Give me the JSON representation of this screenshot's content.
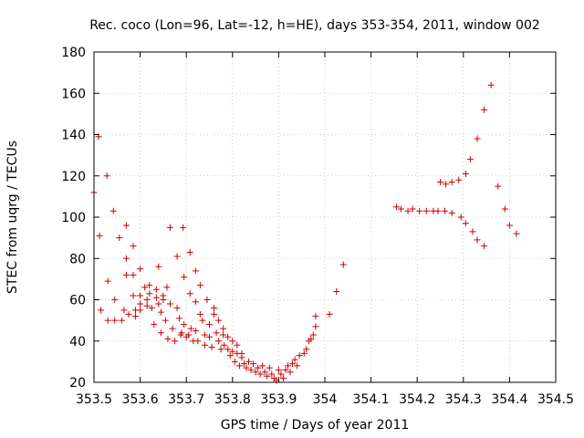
{
  "chart_data": {
    "type": "scatter",
    "title": "Rec. coco (Lon=96, Lat=-12, h=HE), days 353-354, 2011, window 002",
    "xlabel": "GPS time / Days of year 2011",
    "ylabel": "STEC from uqrg / TECUs",
    "xlim": [
      353.5,
      354.5
    ],
    "ylim": [
      20,
      180
    ],
    "xticks": [
      353.5,
      353.6,
      353.7,
      353.8,
      353.9,
      354,
      354.1,
      354.2,
      354.3,
      354.4,
      354.5
    ],
    "xtick_labels": [
      "353.5",
      "353.6",
      "353.7",
      "353.8",
      "353.9",
      "354",
      "354.1",
      "354.2",
      "354.3",
      "354.4",
      "354.5"
    ],
    "yticks": [
      20,
      40,
      60,
      80,
      100,
      120,
      140,
      160,
      180
    ],
    "ytick_labels": [
      "20",
      "40",
      "60",
      "80",
      "100",
      "120",
      "140",
      "160",
      "180"
    ],
    "grid": true,
    "marker": "+",
    "color": "#cc0000",
    "series": [
      {
        "points": [
          [
            353.5,
            112
          ],
          [
            353.51,
            139
          ],
          [
            353.512,
            91
          ],
          [
            353.515,
            55
          ],
          [
            353.528,
            120
          ],
          [
            353.53,
            69
          ],
          [
            353.53,
            50
          ],
          [
            353.542,
            103
          ],
          [
            353.545,
            60
          ],
          [
            353.545,
            50
          ],
          [
            353.555,
            90
          ],
          [
            353.56,
            50
          ],
          [
            353.565,
            55
          ],
          [
            353.57,
            96
          ],
          [
            353.57,
            80
          ],
          [
            353.57,
            72
          ],
          [
            353.575,
            53
          ],
          [
            353.585,
            86
          ],
          [
            353.585,
            72
          ],
          [
            353.585,
            62
          ],
          [
            353.59,
            55
          ],
          [
            353.59,
            52
          ],
          [
            353.6,
            75
          ],
          [
            353.6,
            62
          ],
          [
            353.6,
            58
          ],
          [
            353.6,
            55
          ],
          [
            353.61,
            66
          ],
          [
            353.615,
            60
          ],
          [
            353.615,
            57
          ],
          [
            353.62,
            67
          ],
          [
            353.62,
            63
          ],
          [
            353.625,
            56
          ],
          [
            353.63,
            48
          ],
          [
            353.635,
            65
          ],
          [
            353.635,
            61
          ],
          [
            353.64,
            76
          ],
          [
            353.64,
            58
          ],
          [
            353.645,
            54
          ],
          [
            353.645,
            44
          ],
          [
            353.65,
            62
          ],
          [
            353.65,
            60
          ],
          [
            353.655,
            50
          ],
          [
            353.658,
            66
          ],
          [
            353.66,
            41
          ],
          [
            353.665,
            95
          ],
          [
            353.665,
            58
          ],
          [
            353.67,
            46
          ],
          [
            353.675,
            40
          ],
          [
            353.68,
            81
          ],
          [
            353.68,
            56
          ],
          [
            353.685,
            51
          ],
          [
            353.688,
            43
          ],
          [
            353.69,
            44
          ],
          [
            353.693,
            95
          ],
          [
            353.695,
            71
          ],
          [
            353.695,
            48
          ],
          [
            353.7,
            42
          ],
          [
            353.705,
            43
          ],
          [
            353.708,
            83
          ],
          [
            353.708,
            63
          ],
          [
            353.71,
            46
          ],
          [
            353.715,
            40
          ],
          [
            353.72,
            74
          ],
          [
            353.72,
            59
          ],
          [
            353.72,
            45
          ],
          [
            353.725,
            40
          ],
          [
            353.73,
            67
          ],
          [
            353.73,
            53
          ],
          [
            353.735,
            50
          ],
          [
            353.74,
            43
          ],
          [
            353.74,
            38
          ],
          [
            353.745,
            60
          ],
          [
            353.75,
            48
          ],
          [
            353.75,
            42
          ],
          [
            353.755,
            37
          ],
          [
            353.76,
            56
          ],
          [
            353.76,
            53
          ],
          [
            353.765,
            44
          ],
          [
            353.77,
            50
          ],
          [
            353.77,
            40
          ],
          [
            353.775,
            36
          ],
          [
            353.78,
            46
          ],
          [
            353.78,
            43
          ],
          [
            353.782,
            38
          ],
          [
            353.79,
            42
          ],
          [
            353.79,
            36
          ],
          [
            353.795,
            33
          ],
          [
            353.8,
            40
          ],
          [
            353.8,
            35
          ],
          [
            353.805,
            30
          ],
          [
            353.81,
            38
          ],
          [
            353.81,
            34
          ],
          [
            353.815,
            28
          ],
          [
            353.82,
            34
          ],
          [
            353.82,
            32
          ],
          [
            353.825,
            29
          ],
          [
            353.83,
            27
          ],
          [
            353.835,
            30
          ],
          [
            353.84,
            26
          ],
          [
            353.845,
            29
          ],
          [
            353.85,
            25
          ],
          [
            353.855,
            27
          ],
          [
            353.86,
            24
          ],
          [
            353.865,
            28
          ],
          [
            353.87,
            25
          ],
          [
            353.875,
            23
          ],
          [
            353.88,
            27
          ],
          [
            353.885,
            24
          ],
          [
            353.89,
            22
          ],
          [
            353.895,
            21
          ],
          [
            353.9,
            26
          ],
          [
            353.905,
            24
          ],
          [
            353.91,
            22
          ],
          [
            353.915,
            26
          ],
          [
            353.92,
            28
          ],
          [
            353.925,
            25
          ],
          [
            353.93,
            29
          ],
          [
            353.935,
            31
          ],
          [
            353.94,
            28
          ],
          [
            353.945,
            33
          ],
          [
            353.955,
            34
          ],
          [
            353.96,
            36
          ],
          [
            353.965,
            40
          ],
          [
            353.97,
            41
          ],
          [
            353.975,
            43
          ],
          [
            353.98,
            47
          ],
          [
            353.98,
            52
          ],
          [
            354.01,
            53
          ],
          [
            354.025,
            64
          ],
          [
            354.04,
            77
          ],
          [
            354.155,
            105
          ],
          [
            354.165,
            104
          ],
          [
            354.18,
            103
          ],
          [
            354.19,
            104
          ],
          [
            354.205,
            103
          ],
          [
            354.22,
            103
          ],
          [
            354.235,
            103
          ],
          [
            354.245,
            103
          ],
          [
            354.25,
            117
          ],
          [
            354.26,
            103
          ],
          [
            354.262,
            116
          ],
          [
            354.275,
            117
          ],
          [
            354.275,
            102
          ],
          [
            354.29,
            118
          ],
          [
            354.295,
            100
          ],
          [
            354.305,
            121
          ],
          [
            354.305,
            97
          ],
          [
            354.315,
            128
          ],
          [
            354.32,
            93
          ],
          [
            354.33,
            138
          ],
          [
            354.33,
            89
          ],
          [
            354.345,
            152
          ],
          [
            354.345,
            86
          ],
          [
            354.36,
            164
          ],
          [
            354.375,
            115
          ],
          [
            354.39,
            104
          ],
          [
            354.4,
            96
          ],
          [
            354.415,
            92
          ]
        ]
      }
    ]
  }
}
